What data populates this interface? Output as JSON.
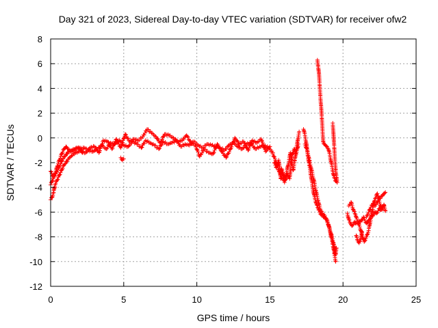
{
  "chart_data": {
    "type": "scatter",
    "title": "Day 321 of 2023, Sidereal Day-to-day VTEC variation (SDTVAR) for receiver ofw2",
    "xlabel": "GPS time / hours",
    "ylabel": "SDTVAR / TECUs",
    "xlim": [
      0,
      25
    ],
    "ylim": [
      -12,
      8
    ],
    "xticks": [
      0,
      5,
      10,
      15,
      20,
      25
    ],
    "yticks": [
      -12,
      -10,
      -8,
      -6,
      -4,
      -2,
      0,
      2,
      4,
      6,
      8
    ],
    "grid": true,
    "marker": "+",
    "color": "#ff0000",
    "series": [
      {
        "name": "SDTVAR",
        "segments": [
          {
            "x": [
              0.0,
              0.1,
              0.2,
              0.3,
              0.45,
              0.6,
              0.75,
              0.9,
              1.1,
              1.3,
              1.5,
              1.7,
              1.9,
              2.1
            ],
            "y": [
              -5.0,
              -4.8,
              -4.4,
              -3.8,
              -3.4,
              -3.0,
              -2.6,
              -2.2,
              -1.9,
              -1.6,
              -1.4,
              -1.2,
              -1.1,
              -1.0
            ]
          },
          {
            "x": [
              0.0,
              0.1,
              0.2,
              0.35,
              0.5,
              0.65,
              0.8,
              0.95,
              1.1,
              1.25,
              1.4,
              1.6,
              1.8,
              2.0
            ],
            "y": [
              -3.8,
              -3.5,
              -3.2,
              -2.9,
              -2.6,
              -2.2,
              -1.8,
              -1.5,
              -1.3,
              -1.1,
              -1.0,
              -0.9,
              -0.85,
              -0.8
            ]
          },
          {
            "x": [
              0.0,
              0.15,
              0.3,
              0.45,
              0.6,
              0.75,
              0.9,
              1.05,
              1.2,
              1.4,
              1.6,
              1.8,
              2.0,
              2.2
            ],
            "y": [
              -2.7,
              -3.1,
              -2.9,
              -2.3,
              -1.8,
              -1.3,
              -0.9,
              -0.7,
              -0.9,
              -1.1,
              -1.0,
              -0.8,
              -0.9,
              -1.2
            ]
          },
          {
            "x": [
              2.0,
              2.3,
              2.6,
              2.9,
              3.2,
              3.5,
              3.8,
              4.1,
              4.4,
              4.7,
              5.0,
              5.3,
              5.6,
              5.9,
              6.2,
              6.5,
              6.8,
              7.1,
              7.4,
              7.7,
              8.0,
              8.3,
              8.6,
              8.9,
              9.2,
              9.5,
              9.8,
              10.1,
              10.4,
              10.7,
              11.0,
              11.3,
              11.6,
              11.9,
              12.2,
              12.5,
              12.8,
              13.1,
              13.4,
              13.7,
              14.0,
              14.3,
              14.6,
              14.9,
              15.2
            ],
            "y": [
              -0.9,
              -0.8,
              -1.0,
              -1.1,
              -0.9,
              -0.6,
              -0.9,
              -0.4,
              -0.5,
              -0.2,
              -0.6,
              -0.7,
              -0.3,
              -0.5,
              -0.8,
              -0.2,
              -0.4,
              -0.6,
              -0.9,
              -0.3,
              -0.5,
              -0.4,
              -0.2,
              -0.7,
              -0.5,
              -0.6,
              -0.3,
              -0.6,
              -0.8,
              -0.5,
              -0.6,
              -0.7,
              -0.8,
              -1.0,
              -0.6,
              -0.4,
              -0.7,
              -0.9,
              -0.5,
              -0.4,
              -0.9,
              -0.7,
              -0.6,
              -0.8,
              -1.2
            ]
          },
          {
            "x": [
              2.1,
              2.4,
              2.7,
              3.0,
              3.3,
              3.6,
              3.9,
              4.2,
              4.5,
              4.8,
              5.1,
              5.4,
              5.7,
              6.0,
              6.3,
              6.6,
              6.9,
              7.2,
              7.5,
              7.8,
              8.1,
              8.4,
              8.7,
              9.0,
              9.3,
              9.6,
              9.9,
              10.2,
              10.5,
              10.8,
              11.1,
              11.4,
              11.7,
              12.0,
              12.3,
              12.6,
              12.9,
              13.2,
              13.5,
              13.8,
              14.1,
              14.4,
              14.7,
              15.0
            ],
            "y": [
              -1.1,
              -1.2,
              -0.8,
              -0.7,
              -1.2,
              -0.2,
              -0.3,
              -0.9,
              -0.1,
              -0.8,
              0.3,
              -0.3,
              -0.1,
              -0.2,
              0.1,
              0.7,
              0.4,
              0.1,
              -0.4,
              0.3,
              0.2,
              0.0,
              -0.3,
              -0.2,
              0.2,
              -0.4,
              -0.6,
              -1.5,
              -0.9,
              -1.2,
              -1.3,
              -0.5,
              -1.1,
              -1.6,
              -0.9,
              0.0,
              -0.5,
              -0.3,
              -1.0,
              -0.2,
              -0.4,
              -0.1,
              -1.1,
              -0.7
            ]
          },
          {
            "x": [
              4.8,
              4.9,
              5.0
            ],
            "y": [
              -1.6,
              -1.8,
              -1.7
            ]
          },
          {
            "x": [
              15.2,
              15.35,
              15.5,
              15.6,
              15.7,
              15.8,
              15.9,
              16.0,
              16.1,
              16.2,
              16.3,
              16.4,
              16.5,
              16.6,
              16.7,
              16.8,
              16.9,
              17.0
            ],
            "y": [
              -1.3,
              -1.7,
              -2.2,
              -2.6,
              -3.0,
              -2.5,
              -3.2,
              -3.6,
              -3.1,
              -2.4,
              -1.9,
              -1.2,
              -2.1,
              -2.6,
              -1.8,
              -1.0,
              -0.2,
              0.5
            ]
          },
          {
            "x": [
              15.3,
              15.45,
              15.6,
              15.75,
              15.9,
              16.05,
              16.2,
              16.35,
              16.5,
              16.65,
              16.8,
              16.95
            ],
            "y": [
              -2.0,
              -2.4,
              -1.8,
              -3.3,
              -2.8,
              -3.4,
              -2.9,
              -3.3,
              -1.5,
              -0.9,
              -1.3,
              -0.5
            ]
          },
          {
            "x": [
              17.3,
              17.4,
              17.5,
              17.6,
              17.7,
              17.8,
              17.9,
              18.0,
              18.1,
              18.2,
              18.3,
              18.4,
              18.5,
              18.6,
              18.7,
              18.8,
              18.9,
              19.0,
              19.1,
              19.2,
              19.3,
              19.4,
              19.5
            ],
            "y": [
              0.7,
              0.2,
              -0.5,
              -1.5,
              -2.2,
              -3.0,
              -3.8,
              -4.5,
              -5.0,
              -5.4,
              -5.7,
              -6.0,
              -6.2,
              -6.3,
              -6.4,
              -6.5,
              -6.7,
              -7.0,
              -7.5,
              -8.0,
              -8.6,
              -9.3,
              -10.0
            ]
          },
          {
            "x": [
              17.4,
              17.55,
              17.7,
              17.85,
              18.0,
              18.15,
              18.3,
              18.45,
              18.6,
              18.75,
              18.9,
              19.05,
              19.2,
              19.35,
              19.5
            ],
            "y": [
              -0.5,
              -1.0,
              -1.8,
              -2.6,
              -3.4,
              -4.3,
              -5.1,
              -5.8,
              -6.1,
              -6.3,
              -6.6,
              -7.2,
              -7.8,
              -8.5,
              -9.4
            ]
          },
          {
            "x": [
              18.25,
              18.3,
              18.35,
              18.4,
              18.45,
              18.5,
              18.55,
              18.6,
              18.65,
              18.7,
              18.8,
              18.9,
              19.0,
              19.1,
              19.2,
              19.3,
              19.4,
              19.5,
              19.6
            ],
            "y": [
              6.3,
              5.8,
              5.3,
              4.3,
              3.4,
              2.6,
              1.6,
              0.6,
              -0.3,
              -0.5,
              -0.6,
              -0.7,
              -0.9,
              -1.4,
              -2.0,
              -2.7,
              -3.2,
              -3.5,
              -3.6
            ]
          },
          {
            "x": [
              19.3,
              19.35,
              19.4,
              19.45,
              19.5,
              19.55,
              19.6
            ],
            "y": [
              1.2,
              0.3,
              -0.8,
              -1.8,
              -2.6,
              -3.2,
              -3.6
            ]
          },
          {
            "x": [
              19.4,
              19.45,
              19.5,
              19.55
            ],
            "y": [
              -8.8,
              -9.5,
              -9.4,
              -8.9
            ]
          },
          {
            "x": [
              20.3,
              20.4,
              20.5,
              20.6,
              20.7,
              20.8,
              20.9,
              21.0,
              21.1,
              21.2,
              21.3,
              21.4,
              21.5,
              21.6,
              21.7,
              21.8,
              21.9,
              22.0,
              22.1,
              22.2,
              22.3,
              22.4,
              22.5,
              22.6,
              22.7,
              22.8,
              22.9
            ],
            "y": [
              -6.1,
              -6.6,
              -6.9,
              -7.1,
              -7.0,
              -6.8,
              -6.9,
              -6.9,
              -6.7,
              -6.8,
              -6.6,
              -6.4,
              -6.7,
              -6.9,
              -6.8,
              -6.6,
              -6.4,
              -6.3,
              -6.2,
              -6.0,
              -6.1,
              -5.9,
              -5.7,
              -5.8,
              -5.6,
              -5.4,
              -5.9
            ]
          },
          {
            "x": [
              20.4,
              20.55,
              20.7,
              20.85,
              21.0,
              21.15,
              21.3,
              21.45,
              21.6,
              21.75,
              21.9,
              22.05,
              22.2,
              22.35,
              22.5,
              22.65,
              22.8
            ],
            "y": [
              -5.5,
              -5.2,
              -5.8,
              -6.2,
              -6.8,
              -7.2,
              -7.8,
              -8.4,
              -8.0,
              -7.5,
              -6.5,
              -5.6,
              -4.9,
              -4.5,
              -5.2,
              -5.8,
              -5.5
            ]
          },
          {
            "x": [
              21.6,
              21.75,
              21.9,
              22.05,
              22.2,
              22.35,
              22.5,
              22.65,
              22.8,
              22.9
            ],
            "y": [
              -6.4,
              -6.0,
              -5.6,
              -5.3,
              -5.5,
              -5.2,
              -4.9,
              -4.7,
              -4.5,
              -4.4
            ]
          },
          {
            "x": [
              20.9,
              21.0,
              21.1,
              21.2,
              21.3
            ],
            "y": [
              -7.9,
              -8.3,
              -8.5,
              -8.2,
              -7.6
            ]
          }
        ]
      }
    ]
  }
}
